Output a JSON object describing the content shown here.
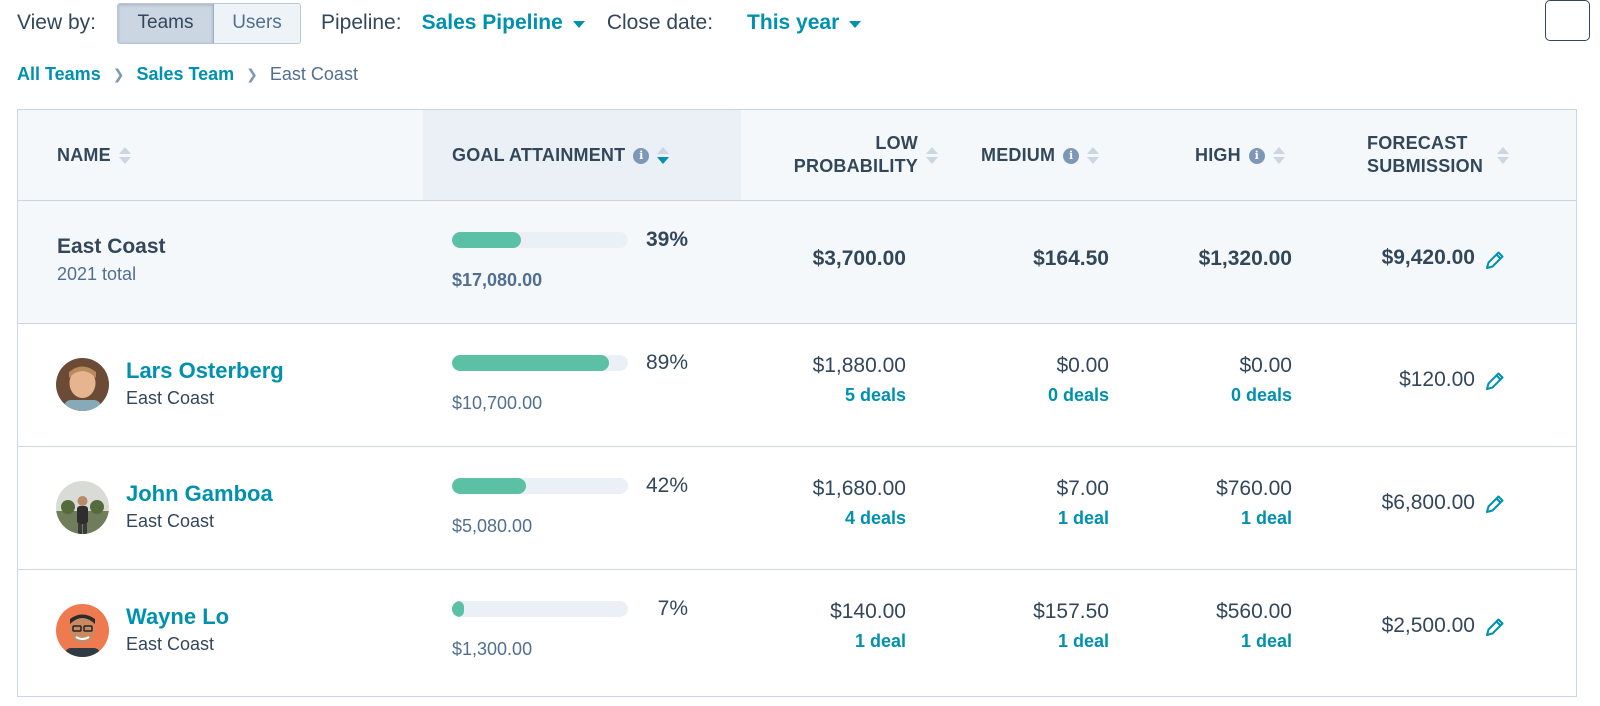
{
  "toolbar": {
    "view_by_label": "View by:",
    "view_options": [
      "Teams",
      "Users"
    ],
    "view_selected": "Teams",
    "pipeline_label": "Pipeline:",
    "pipeline_value": "Sales Pipeline",
    "close_date_label": "Close date:",
    "close_date_value": "This year"
  },
  "breadcrumb": [
    "All Teams",
    "Sales Team",
    "East Coast"
  ],
  "columns": {
    "name": "NAME",
    "goal": "GOAL ATTAINMENT",
    "low_1": "LOW",
    "low_2": "PROBABILITY",
    "medium": "MEDIUM",
    "high": "HIGH",
    "forecast_1": "FORECAST",
    "forecast_2": "SUBMISSION"
  },
  "total": {
    "name": "East Coast",
    "sub": "2021 total",
    "goal_percent": "39%",
    "goal_fraction": 0.39,
    "goal_amount": "$17,080.00",
    "low": "$3,700.00",
    "medium": "$164.50",
    "high": "$1,320.00",
    "forecast": "$9,420.00"
  },
  "rows": [
    {
      "name": "Lars Osterberg",
      "team": "East Coast",
      "goal_percent": "89%",
      "goal_fraction": 0.89,
      "goal_amount": "$10,700.00",
      "low": "$1,880.00",
      "low_deals": "5 deals",
      "medium": "$0.00",
      "medium_deals": "0 deals",
      "high": "$0.00",
      "high_deals": "0 deals",
      "forecast": "$120.00"
    },
    {
      "name": "John Gamboa",
      "team": "East Coast",
      "goal_percent": "42%",
      "goal_fraction": 0.42,
      "goal_amount": "$5,080.00",
      "low": "$1,680.00",
      "low_deals": "4 deals",
      "medium": "$7.00",
      "medium_deals": "1 deal",
      "high": "$760.00",
      "high_deals": "1 deal",
      "forecast": "$6,800.00"
    },
    {
      "name": "Wayne Lo",
      "team": "East Coast",
      "goal_percent": "7%",
      "goal_fraction": 0.07,
      "goal_amount": "$1,300.00",
      "low": "$140.00",
      "low_deals": "1 deal",
      "medium": "$157.50",
      "medium_deals": "1 deal",
      "high": "$560.00",
      "high_deals": "1 deal",
      "forecast": "$2,500.00"
    }
  ],
  "colors": {
    "accent": "#0091ae",
    "progress": "#5cc0a5",
    "text": "#33475b"
  }
}
